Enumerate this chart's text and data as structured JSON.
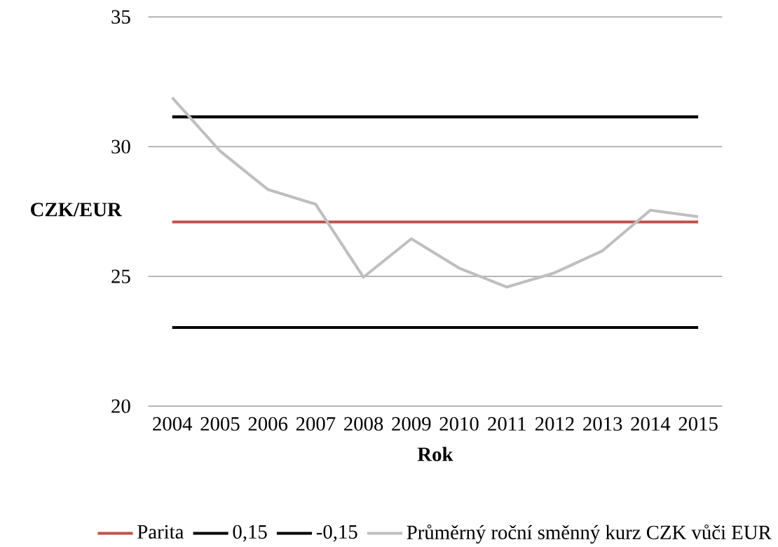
{
  "chart_data": {
    "type": "line",
    "xlabel": "Rok",
    "ylabel": "CZK/EUR",
    "categories": [
      "2004",
      "2005",
      "2006",
      "2007",
      "2008",
      "2009",
      "2010",
      "2011",
      "2012",
      "2013",
      "2014",
      "2015"
    ],
    "series": [
      {
        "name": "Parita",
        "color": "#c0504d",
        "values": [
          27.1,
          27.1,
          27.1,
          27.1,
          27.1,
          27.1,
          27.1,
          27.1,
          27.1,
          27.1,
          27.1,
          27.1
        ]
      },
      {
        "name": "0,15",
        "color": "#000000",
        "values": [
          31.15,
          31.15,
          31.15,
          31.15,
          31.15,
          31.15,
          31.15,
          31.15,
          31.15,
          31.15,
          31.15,
          31.15
        ]
      },
      {
        "name": "-0,15",
        "color": "#000000",
        "values": [
          23.03,
          23.03,
          23.03,
          23.03,
          23.03,
          23.03,
          23.03,
          23.03,
          23.03,
          23.03,
          23.03,
          23.03
        ]
      },
      {
        "name": "Průměrný roční směnný kurz CZK vůči EUR",
        "color": "#bfbfbf",
        "values": [
          31.89,
          29.83,
          28.35,
          27.78,
          24.97,
          26.45,
          25.32,
          24.59,
          25.14,
          25.99,
          27.55,
          27.3
        ]
      }
    ],
    "ylim": [
      20,
      35
    ],
    "yticks": [
      20,
      25,
      30,
      35
    ],
    "grid": "y",
    "legend": "bottom",
    "marker": "none",
    "line_style": "solid"
  }
}
